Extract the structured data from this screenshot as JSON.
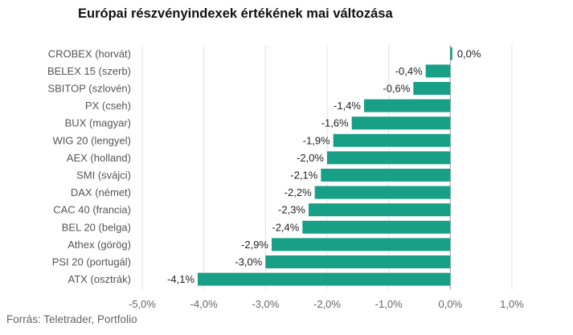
{
  "chart_data": {
    "type": "bar",
    "orientation": "horizontal",
    "title": "Európai részvényindexek értékének mai változása",
    "categories": [
      "CROBEX (horvát)",
      "BELEX 15 (szerb)",
      "SBITOP (szlovén)",
      "PX (cseh)",
      "BUX (magyar)",
      "WIG 20 (lengyel)",
      "AEX (holland)",
      "SMI (svájci)",
      "DAX (német)",
      "CAC 40 (francia)",
      "BEL 20 (belga)",
      "Athex (görög)",
      "PSI 20 (portugál)",
      "ATX (osztrák)"
    ],
    "values": [
      0.0,
      -0.4,
      -0.6,
      -1.4,
      -1.6,
      -1.9,
      -2.0,
      -2.1,
      -2.2,
      -2.3,
      -2.4,
      -2.9,
      -3.0,
      -4.1
    ],
    "value_labels": [
      "0,0%",
      "-0,4%",
      "-0,6%",
      "-1,4%",
      "-1,6%",
      "-1,9%",
      "-2,0%",
      "-2,1%",
      "-2,2%",
      "-2,3%",
      "-2,4%",
      "-2,9%",
      "-3,0%",
      "-4,1%"
    ],
    "xlim": [
      -5.0,
      1.0
    ],
    "x_ticks": [
      -5,
      -4,
      -3,
      -2,
      -1,
      0,
      1
    ],
    "x_tick_labels": [
      "-5,0%",
      "-4,0%",
      "-3,0%",
      "-2,0%",
      "-1,0%",
      "0,0%",
      "1,0%"
    ],
    "grid": true,
    "bar_color": "#17a085"
  },
  "source": "Forrás: Teletrader, Portfolio"
}
